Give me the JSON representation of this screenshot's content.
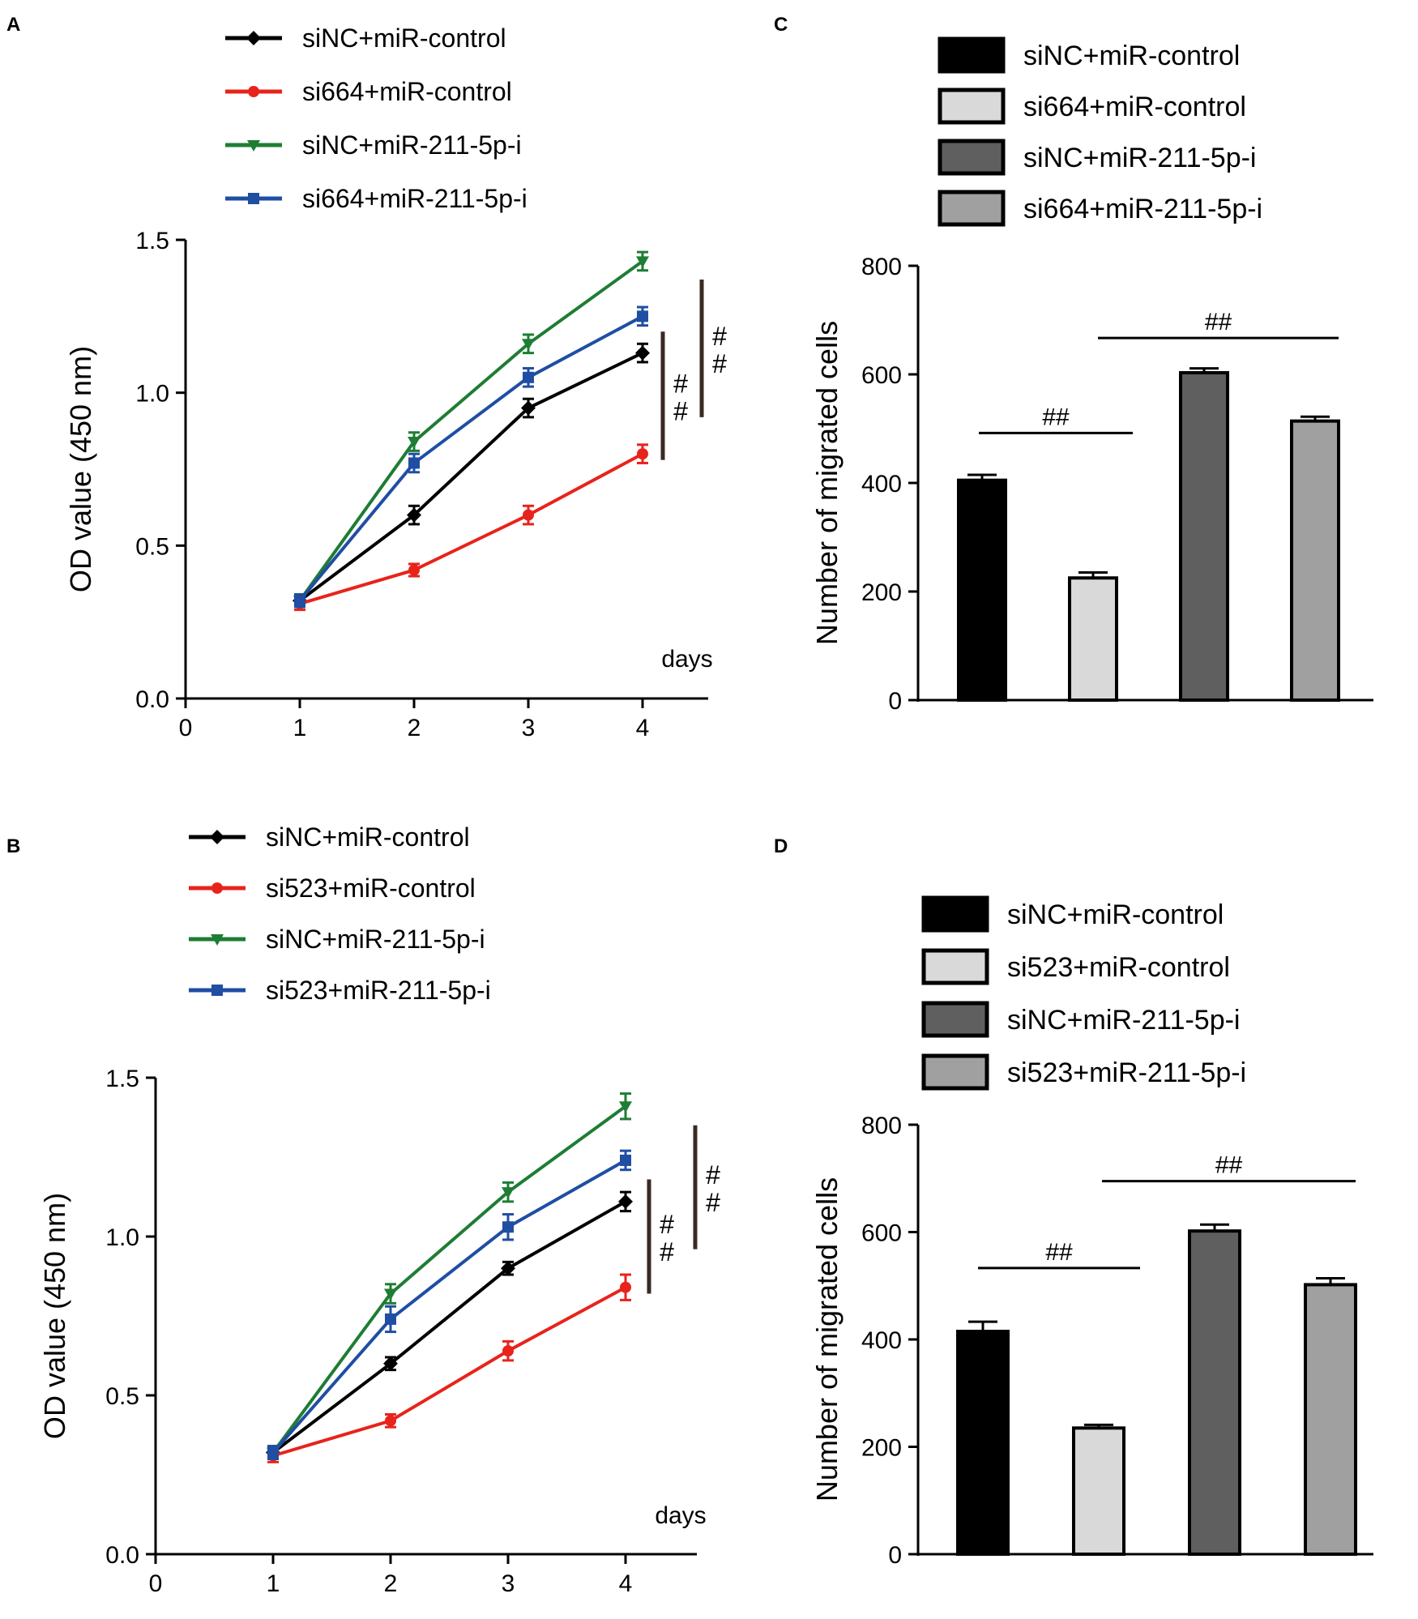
{
  "chart_data": [
    {
      "panel": "A",
      "type": "line",
      "title": "",
      "xlabel": "days",
      "ylabel": "OD value (450 nm)",
      "xlim": [
        0,
        4.5
      ],
      "ylim": [
        0,
        1.5
      ],
      "xticks": [
        "0",
        "1",
        "2",
        "3",
        "4"
      ],
      "yticks": [
        "0.0",
        "0.5",
        "1.0",
        "1.5"
      ],
      "x": [
        1,
        2,
        3,
        4
      ],
      "series": [
        {
          "name": "siNC+miR-control",
          "color": "#000000",
          "marker": "diamond",
          "values": [
            0.32,
            0.6,
            0.95,
            1.13
          ],
          "errors": [
            0.02,
            0.03,
            0.03,
            0.03
          ]
        },
        {
          "name": "si664+miR-control",
          "color": "#e8231c",
          "marker": "circle",
          "values": [
            0.31,
            0.42,
            0.6,
            0.8
          ],
          "errors": [
            0.02,
            0.02,
            0.03,
            0.03
          ]
        },
        {
          "name": "siNC+miR-211-5p-i",
          "color": "#1e7d34",
          "marker": "triangle-down",
          "values": [
            0.32,
            0.84,
            1.16,
            1.43
          ],
          "errors": [
            0.02,
            0.03,
            0.03,
            0.03
          ]
        },
        {
          "name": "si664+miR-211-5p-i",
          "color": "#1f4ea3",
          "marker": "square",
          "values": [
            0.32,
            0.77,
            1.05,
            1.25
          ],
          "errors": [
            0.02,
            0.03,
            0.03,
            0.03
          ]
        }
      ],
      "annotations": [
        "##",
        "##"
      ]
    },
    {
      "panel": "B",
      "type": "line",
      "title": "",
      "xlabel": "days",
      "ylabel": "OD value (450 nm)",
      "xlim": [
        0,
        4.5
      ],
      "ylim": [
        0,
        1.5
      ],
      "xticks": [
        "0",
        "1",
        "2",
        "3",
        "4"
      ],
      "yticks": [
        "0.0",
        "0.5",
        "1.0",
        "1.5"
      ],
      "x": [
        1,
        2,
        3,
        4
      ],
      "series": [
        {
          "name": "siNC+miR-control",
          "color": "#000000",
          "marker": "diamond",
          "values": [
            0.32,
            0.6,
            0.9,
            1.11
          ],
          "errors": [
            0.02,
            0.02,
            0.02,
            0.03
          ]
        },
        {
          "name": "si523+miR-control",
          "color": "#e8231c",
          "marker": "circle",
          "values": [
            0.31,
            0.42,
            0.64,
            0.84
          ],
          "errors": [
            0.02,
            0.02,
            0.03,
            0.04
          ]
        },
        {
          "name": "siNC+miR-211-5p-i",
          "color": "#1e7d34",
          "marker": "triangle-down",
          "values": [
            0.32,
            0.82,
            1.14,
            1.41
          ],
          "errors": [
            0.02,
            0.03,
            0.03,
            0.04
          ]
        },
        {
          "name": "si523+miR-211-5p-i",
          "color": "#1f4ea3",
          "marker": "square",
          "values": [
            0.32,
            0.74,
            1.03,
            1.24
          ],
          "errors": [
            0.02,
            0.04,
            0.04,
            0.03
          ]
        }
      ],
      "annotations": [
        "##",
        "##"
      ]
    },
    {
      "panel": "C",
      "type": "bar",
      "title": "",
      "xlabel": "",
      "ylabel": "Number of migrated cells",
      "ylim": [
        0,
        800
      ],
      "yticks": [
        "0",
        "200",
        "400",
        "600",
        "800"
      ],
      "categories": [
        "siNC+miR-control",
        "si664+miR-control",
        "siNC+miR-211-5p-i",
        "si664+miR-211-5p-i"
      ],
      "values": [
        405,
        225,
        603,
        514
      ],
      "errors": [
        10,
        10,
        8,
        8
      ],
      "colors": [
        "#000000",
        "#d9d9d9",
        "#5f5f5f",
        "#a0a0a0"
      ],
      "annotations": [
        "##",
        "##"
      ]
    },
    {
      "panel": "D",
      "type": "bar",
      "title": "",
      "xlabel": "",
      "ylabel": "Number of migrated cells",
      "ylim": [
        0,
        800
      ],
      "yticks": [
        "0",
        "200",
        "400",
        "600",
        "800"
      ],
      "categories": [
        "siNC+miR-control",
        "si523+miR-control",
        "siNC+miR-211-5p-i",
        "si523+miR-211-5p-i"
      ],
      "values": [
        415,
        235,
        602,
        502
      ],
      "errors": [
        18,
        6,
        12,
        12
      ],
      "colors": [
        "#000000",
        "#d9d9d9",
        "#5f5f5f",
        "#a0a0a0"
      ],
      "annotations": [
        "##",
        "##"
      ]
    }
  ]
}
